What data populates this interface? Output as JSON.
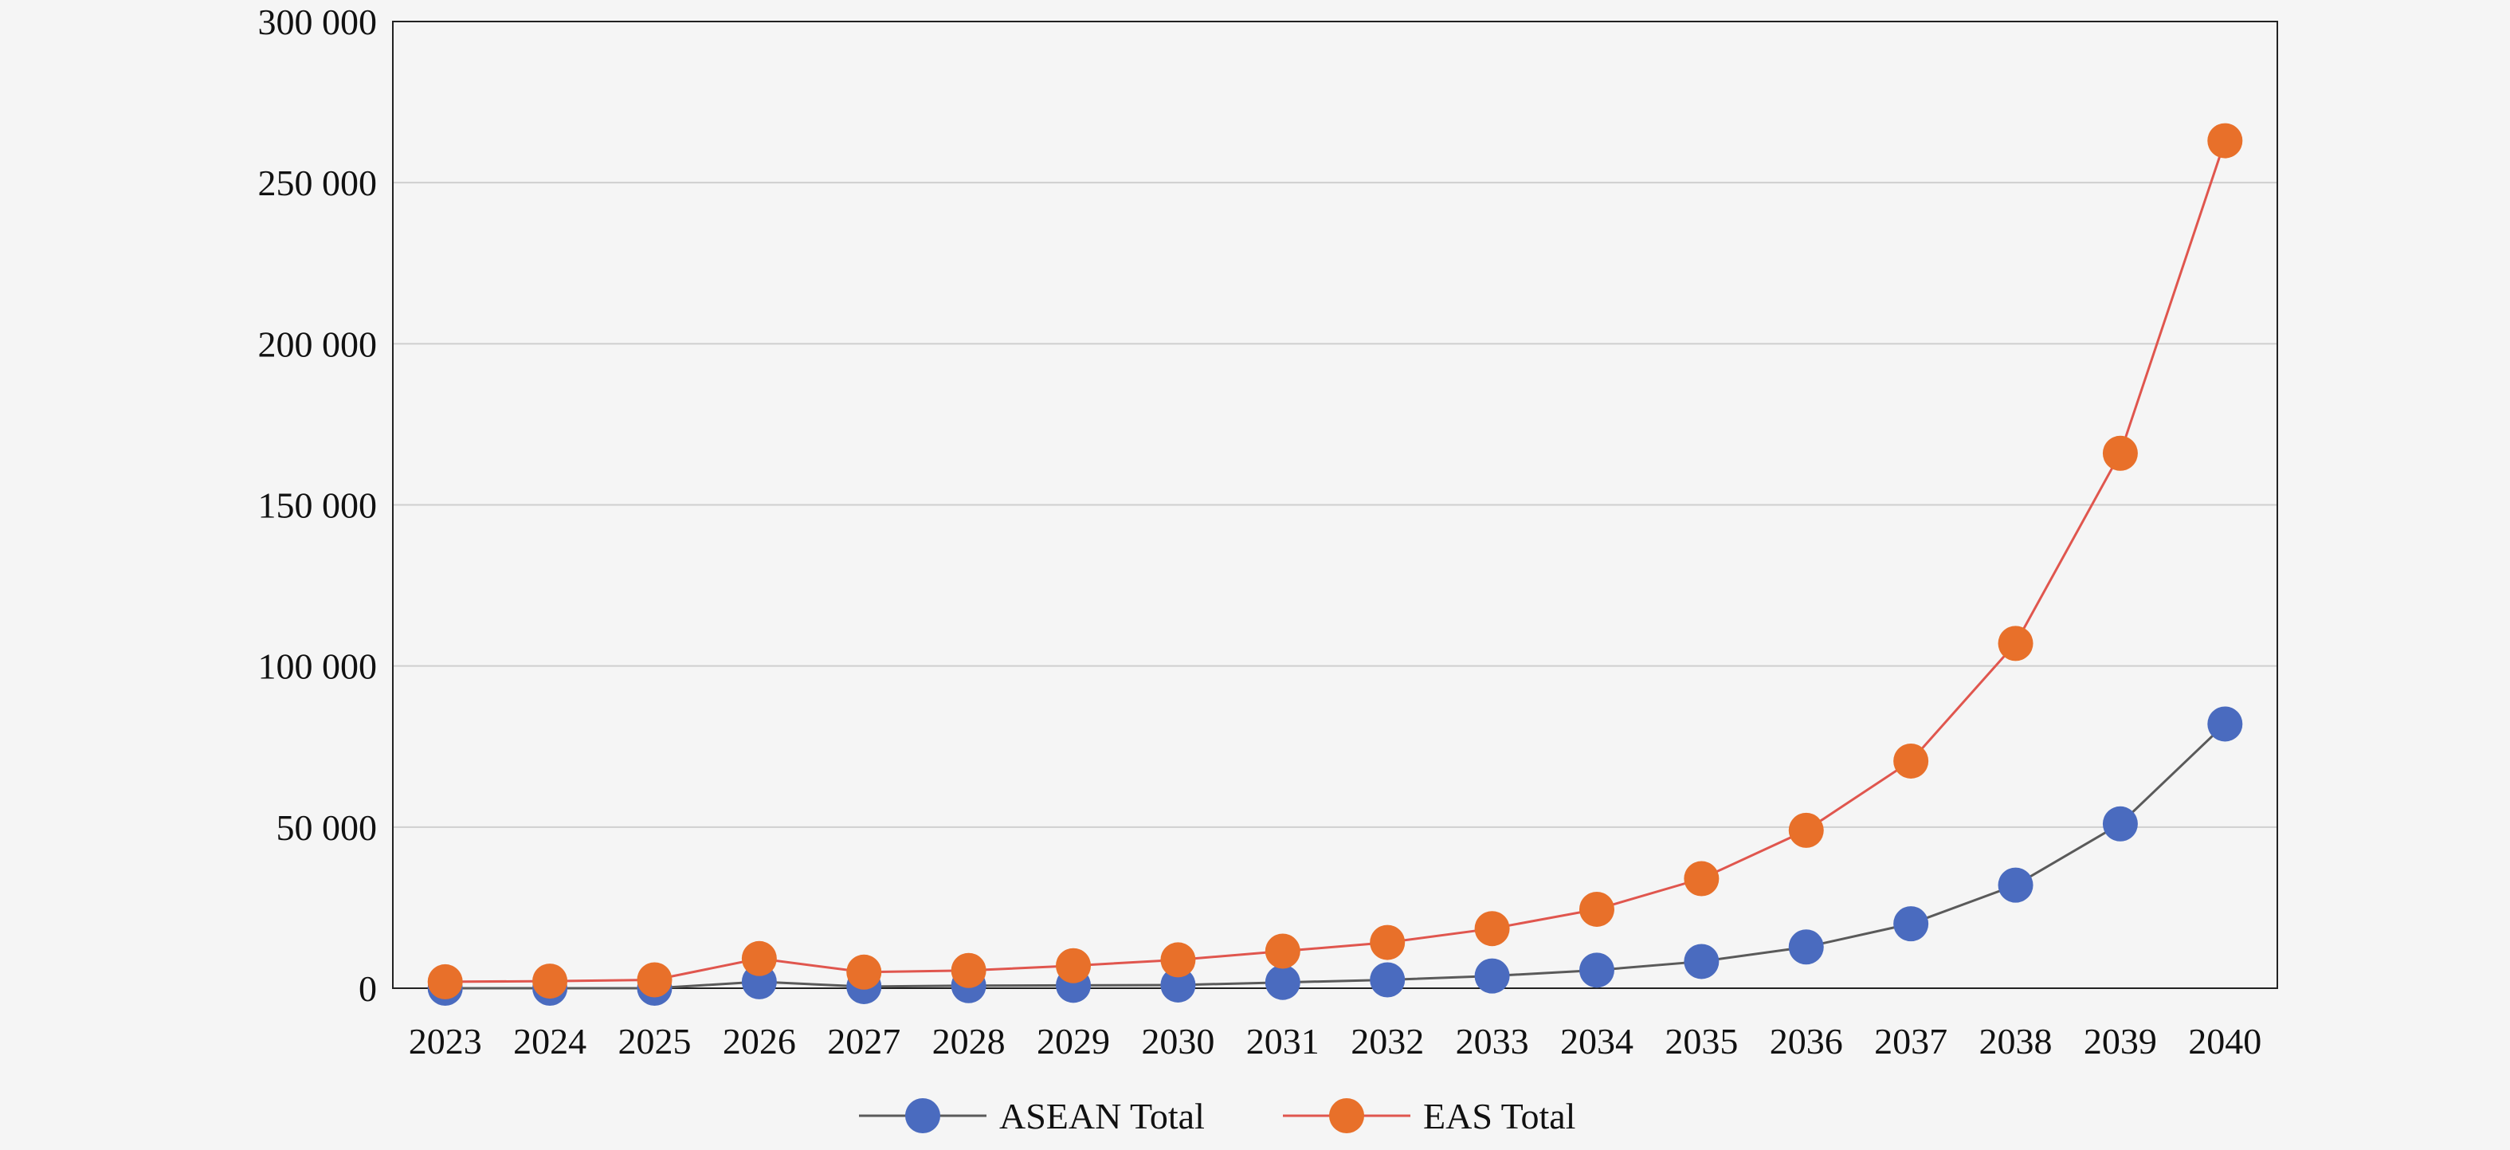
{
  "chart_data": {
    "type": "line",
    "title": "",
    "xlabel": "",
    "ylabel": "",
    "categories": [
      "2023",
      "2024",
      "2025",
      "2026",
      "2027",
      "2028",
      "2029",
      "2030",
      "2031",
      "2032",
      "2033",
      "2034",
      "2035",
      "2036",
      "2037",
      "2038",
      "2039",
      "2040"
    ],
    "ylim": [
      0,
      300000
    ],
    "yticks": [
      0,
      50000,
      100000,
      150000,
      200000,
      250000,
      300000
    ],
    "ytick_labels": [
      "0",
      "50 000",
      "100 000",
      "150 000",
      "200 000",
      "250 000",
      "300 000"
    ],
    "grid": "horizontal",
    "legend_position": "bottom-center",
    "series": [
      {
        "name": "ASEAN Total",
        "marker_color": "#4a6bbf",
        "line_color": "#5a5a5a",
        "values": [
          0,
          0,
          0,
          2000,
          500,
          800,
          900,
          1000,
          1800,
          2600,
          3800,
          5600,
          8300,
          12800,
          20000,
          32000,
          51000,
          82000
        ]
      },
      {
        "name": "EAS Total",
        "marker_color": "#e8702a",
        "line_color": "#e0564e",
        "values": [
          2000,
          2200,
          2600,
          9200,
          5000,
          5500,
          7000,
          8800,
          11500,
          14200,
          18500,
          24500,
          34000,
          49000,
          70500,
          107000,
          166000,
          263000
        ]
      }
    ]
  }
}
